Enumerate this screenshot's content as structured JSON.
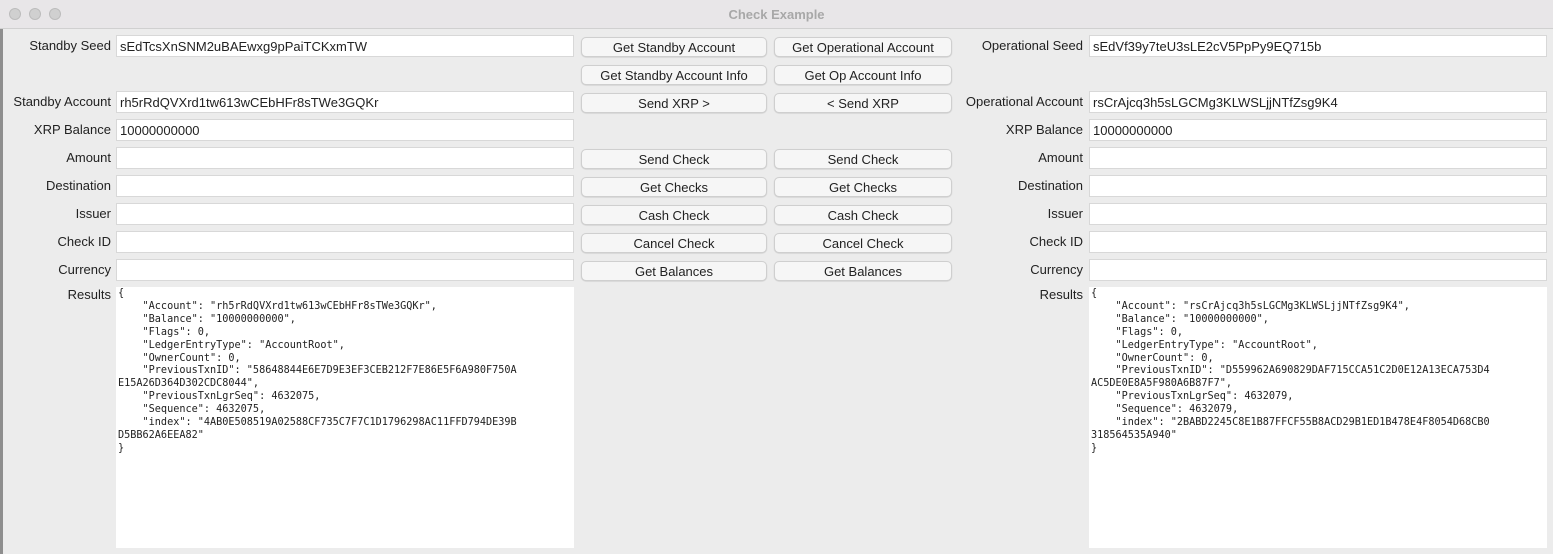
{
  "window": {
    "title": "Check Example"
  },
  "standby": {
    "seed_label": "Standby Seed",
    "seed": "sEdTcsXnSNM2uBAEwxg9pPaiTCKxmTW",
    "account_label": "Standby Account",
    "account": "rh5rRdQVXrd1tw613wCEbHFr8sTWe3GQKr",
    "balance_label": "XRP Balance",
    "balance": "10000000000",
    "amount_label": "Amount",
    "amount": "",
    "destination_label": "Destination",
    "destination": "",
    "issuer_label": "Issuer",
    "issuer": "",
    "check_id_label": "Check ID",
    "check_id": "",
    "currency_label": "Currency",
    "currency": "",
    "results_label": "Results",
    "results": "{\n    \"Account\": \"rh5rRdQVXrd1tw613wCEbHFr8sTWe3GQKr\",\n    \"Balance\": \"10000000000\",\n    \"Flags\": 0,\n    \"LedgerEntryType\": \"AccountRoot\",\n    \"OwnerCount\": 0,\n    \"PreviousTxnID\": \"58648844E6E7D9E3EF3CEB212F7E86E5F6A980F750A\nE15A26D364D302CDC8044\",\n    \"PreviousTxnLgrSeq\": 4632075,\n    \"Sequence\": 4632075,\n    \"index\": \"4AB0E508519A02588CF735C7F7C1D1796298AC11FFD794DE39B\nD5BB62A6EEA82\"\n}"
  },
  "operational": {
    "seed_label": "Operational Seed",
    "seed": "sEdVf39y7teU3sLE2cV5PpPy9EQ715b",
    "account_label": "Operational Account",
    "account": "rsCrAjcq3h5sLGCMg3KLWSLjjNTfZsg9K4",
    "balance_label": "XRP Balance",
    "balance": "10000000000",
    "amount_label": "Amount",
    "amount": "",
    "destination_label": "Destination",
    "destination": "",
    "issuer_label": "Issuer",
    "issuer": "",
    "check_id_label": "Check ID",
    "check_id": "",
    "currency_label": "Currency",
    "currency": "",
    "results_label": "Results",
    "results": "{\n    \"Account\": \"rsCrAjcq3h5sLGCMg3KLWSLjjNTfZsg9K4\",\n    \"Balance\": \"10000000000\",\n    \"Flags\": 0,\n    \"LedgerEntryType\": \"AccountRoot\",\n    \"OwnerCount\": 0,\n    \"PreviousTxnID\": \"D559962A690829DAF715CCA51C2D0E12A13ECA753D4\nAC5DE0E8A5F980A6B87F7\",\n    \"PreviousTxnLgrSeq\": 4632079,\n    \"Sequence\": 4632079,\n    \"index\": \"2BABD2245C8E1B87FFCF55B8ACD29B1ED1B478E4F8054D68CB0\n318564535A940\"\n}"
  },
  "buttons": {
    "standby": [
      "Get Standby Account",
      "Get Standby Account Info",
      "Send XRP >",
      "Send  Check",
      "Get Checks",
      "Cash  Check",
      "Cancel  Check",
      "Get Balances"
    ],
    "operational": [
      "Get Operational Account",
      "Get Op Account Info",
      "< Send XRP",
      "Send Check",
      "Get Checks",
      "Cash Check",
      "Cancel Check",
      "Get Balances"
    ]
  }
}
